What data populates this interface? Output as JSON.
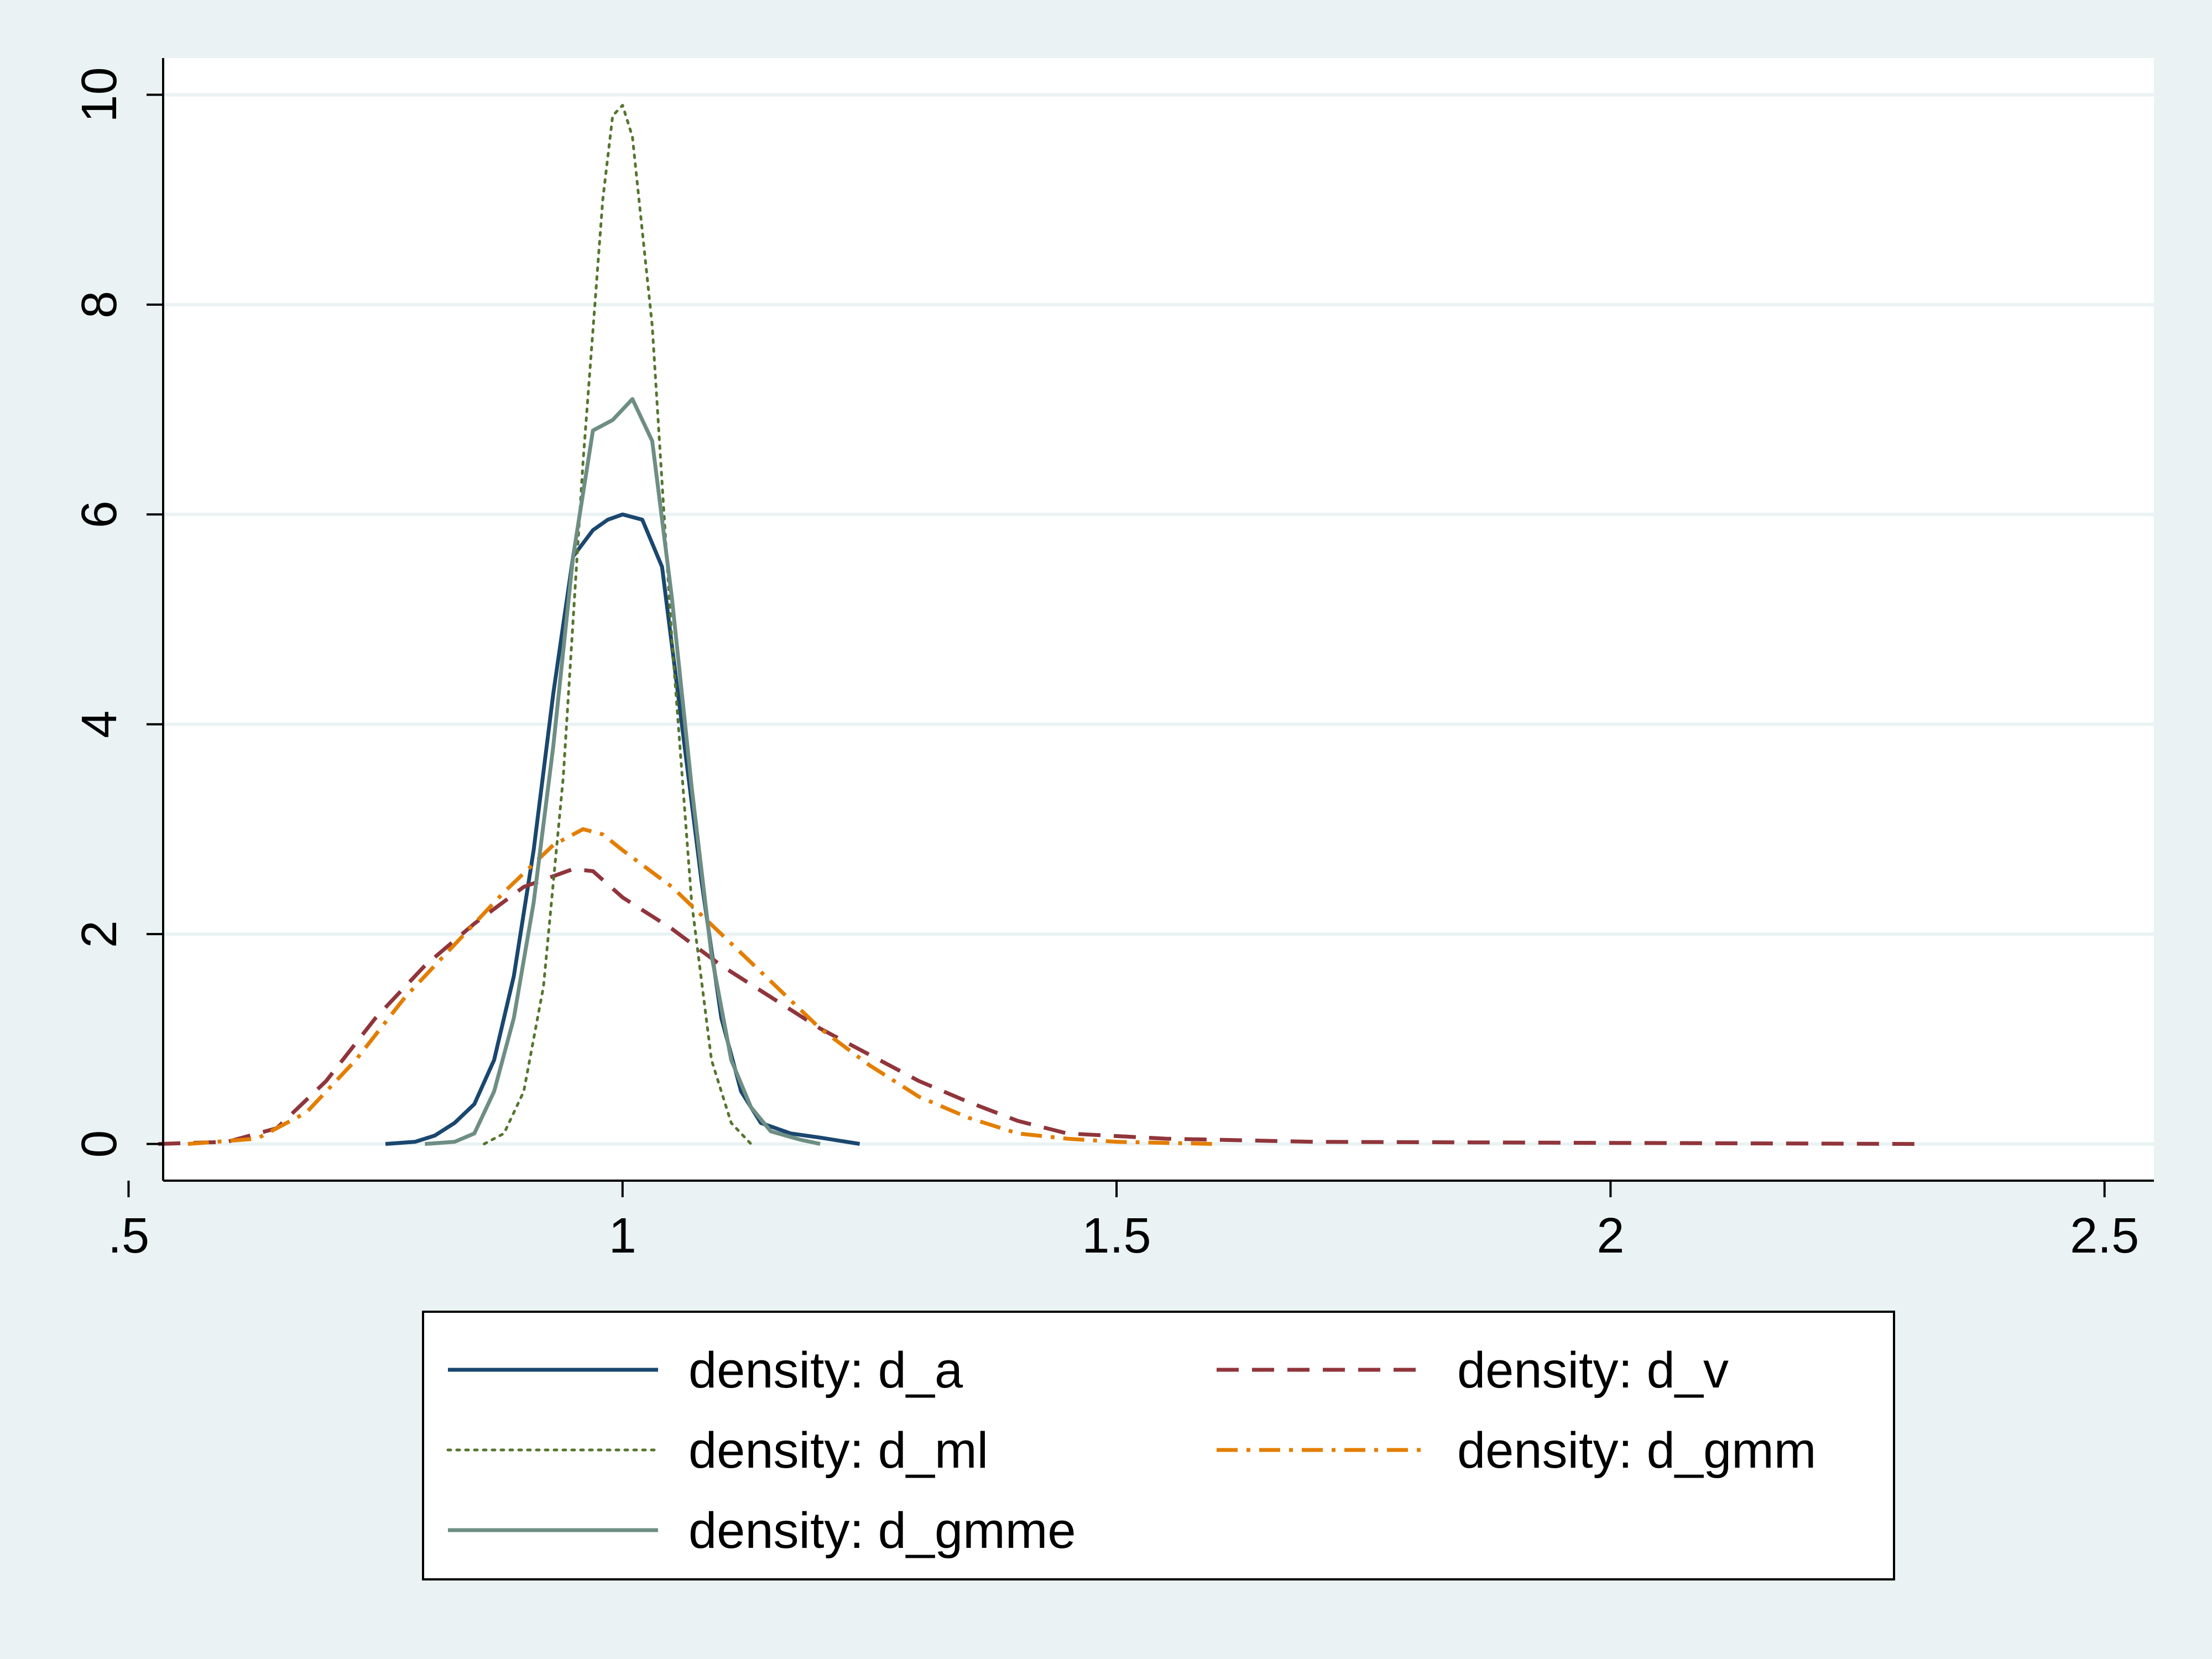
{
  "chart_data": {
    "type": "line",
    "title": "",
    "xlabel": "",
    "ylabel": "",
    "xlim": [
      0.535,
      2.55
    ],
    "ylim": [
      -0.35,
      10.35
    ],
    "x_ticks": [
      0.5,
      1,
      1.5,
      2,
      2.5
    ],
    "x_tick_labels": [
      ".5",
      "1",
      "1.5",
      "2",
      "2.5"
    ],
    "y_ticks": [
      0,
      2,
      4,
      6,
      8,
      10
    ],
    "y_tick_labels": [
      "0",
      "2",
      "4",
      "6",
      "8",
      "10"
    ],
    "grid": "horizontal",
    "legend_position": "bottom",
    "series": [
      {
        "name": "density: d_a",
        "color": "#1a476f",
        "style": "solid",
        "points": [
          [
            0.76,
            0
          ],
          [
            0.79,
            0.02
          ],
          [
            0.81,
            0.08
          ],
          [
            0.83,
            0.2
          ],
          [
            0.85,
            0.38
          ],
          [
            0.87,
            0.8
          ],
          [
            0.89,
            1.6
          ],
          [
            0.91,
            2.8
          ],
          [
            0.93,
            4.3
          ],
          [
            0.95,
            5.6
          ],
          [
            0.97,
            5.85
          ],
          [
            0.985,
            5.95
          ],
          [
            1.0,
            6.0
          ],
          [
            1.02,
            5.95
          ],
          [
            1.04,
            5.5
          ],
          [
            1.06,
            4.0
          ],
          [
            1.08,
            2.5
          ],
          [
            1.1,
            1.2
          ],
          [
            1.12,
            0.5
          ],
          [
            1.14,
            0.2
          ],
          [
            1.17,
            0.1
          ],
          [
            1.2,
            0.06
          ],
          [
            1.24,
            0
          ]
        ]
      },
      {
        "name": "density: d_v",
        "color": "#90353b",
        "style": "dash",
        "points": [
          [
            0.53,
            0
          ],
          [
            0.6,
            0.02
          ],
          [
            0.65,
            0.15
          ],
          [
            0.7,
            0.6
          ],
          [
            0.75,
            1.2
          ],
          [
            0.8,
            1.7
          ],
          [
            0.85,
            2.1
          ],
          [
            0.9,
            2.45
          ],
          [
            0.95,
            2.62
          ],
          [
            0.97,
            2.6
          ],
          [
            1.0,
            2.35
          ],
          [
            1.05,
            2.05
          ],
          [
            1.1,
            1.7
          ],
          [
            1.15,
            1.4
          ],
          [
            1.2,
            1.1
          ],
          [
            1.25,
            0.85
          ],
          [
            1.3,
            0.6
          ],
          [
            1.35,
            0.4
          ],
          [
            1.4,
            0.22
          ],
          [
            1.45,
            0.1
          ],
          [
            1.55,
            0.05
          ],
          [
            1.7,
            0.02
          ],
          [
            2.0,
            0.01
          ],
          [
            2.31,
            0
          ]
        ]
      },
      {
        "name": "density: d_ml",
        "color": "#55752f",
        "style": "dot",
        "points": [
          [
            0.86,
            0
          ],
          [
            0.88,
            0.1
          ],
          [
            0.9,
            0.5
          ],
          [
            0.92,
            1.5
          ],
          [
            0.94,
            3.5
          ],
          [
            0.96,
            6.5
          ],
          [
            0.98,
            9.0
          ],
          [
            0.99,
            9.8
          ],
          [
            1.0,
            9.9
          ],
          [
            1.01,
            9.6
          ],
          [
            1.03,
            7.8
          ],
          [
            1.05,
            4.8
          ],
          [
            1.07,
            2.3
          ],
          [
            1.09,
            0.8
          ],
          [
            1.11,
            0.2
          ],
          [
            1.13,
            0
          ]
        ]
      },
      {
        "name": "density: d_gmm",
        "color": "#e37e00",
        "style": "dashdot",
        "points": [
          [
            0.56,
            0
          ],
          [
            0.63,
            0.05
          ],
          [
            0.68,
            0.3
          ],
          [
            0.73,
            0.8
          ],
          [
            0.78,
            1.4
          ],
          [
            0.83,
            1.9
          ],
          [
            0.88,
            2.4
          ],
          [
            0.93,
            2.85
          ],
          [
            0.96,
            3.0
          ],
          [
            0.98,
            2.95
          ],
          [
            1.0,
            2.8
          ],
          [
            1.05,
            2.45
          ],
          [
            1.1,
            2.0
          ],
          [
            1.15,
            1.55
          ],
          [
            1.2,
            1.1
          ],
          [
            1.25,
            0.75
          ],
          [
            1.3,
            0.45
          ],
          [
            1.35,
            0.25
          ],
          [
            1.4,
            0.1
          ],
          [
            1.45,
            0.05
          ],
          [
            1.5,
            0.02
          ],
          [
            1.6,
            0
          ]
        ]
      },
      {
        "name": "density: d_gmme",
        "color": "#6e8e84",
        "style": "solid",
        "points": [
          [
            0.8,
            0
          ],
          [
            0.83,
            0.02
          ],
          [
            0.85,
            0.1
          ],
          [
            0.87,
            0.5
          ],
          [
            0.89,
            1.2
          ],
          [
            0.91,
            2.3
          ],
          [
            0.93,
            3.8
          ],
          [
            0.95,
            5.6
          ],
          [
            0.97,
            6.8
          ],
          [
            0.99,
            6.9
          ],
          [
            1.01,
            7.1
          ],
          [
            1.03,
            6.7
          ],
          [
            1.05,
            5.2
          ],
          [
            1.07,
            3.4
          ],
          [
            1.09,
            1.8
          ],
          [
            1.11,
            0.8
          ],
          [
            1.13,
            0.35
          ],
          [
            1.15,
            0.12
          ],
          [
            1.18,
            0.04
          ],
          [
            1.2,
            0
          ]
        ]
      }
    ]
  }
}
